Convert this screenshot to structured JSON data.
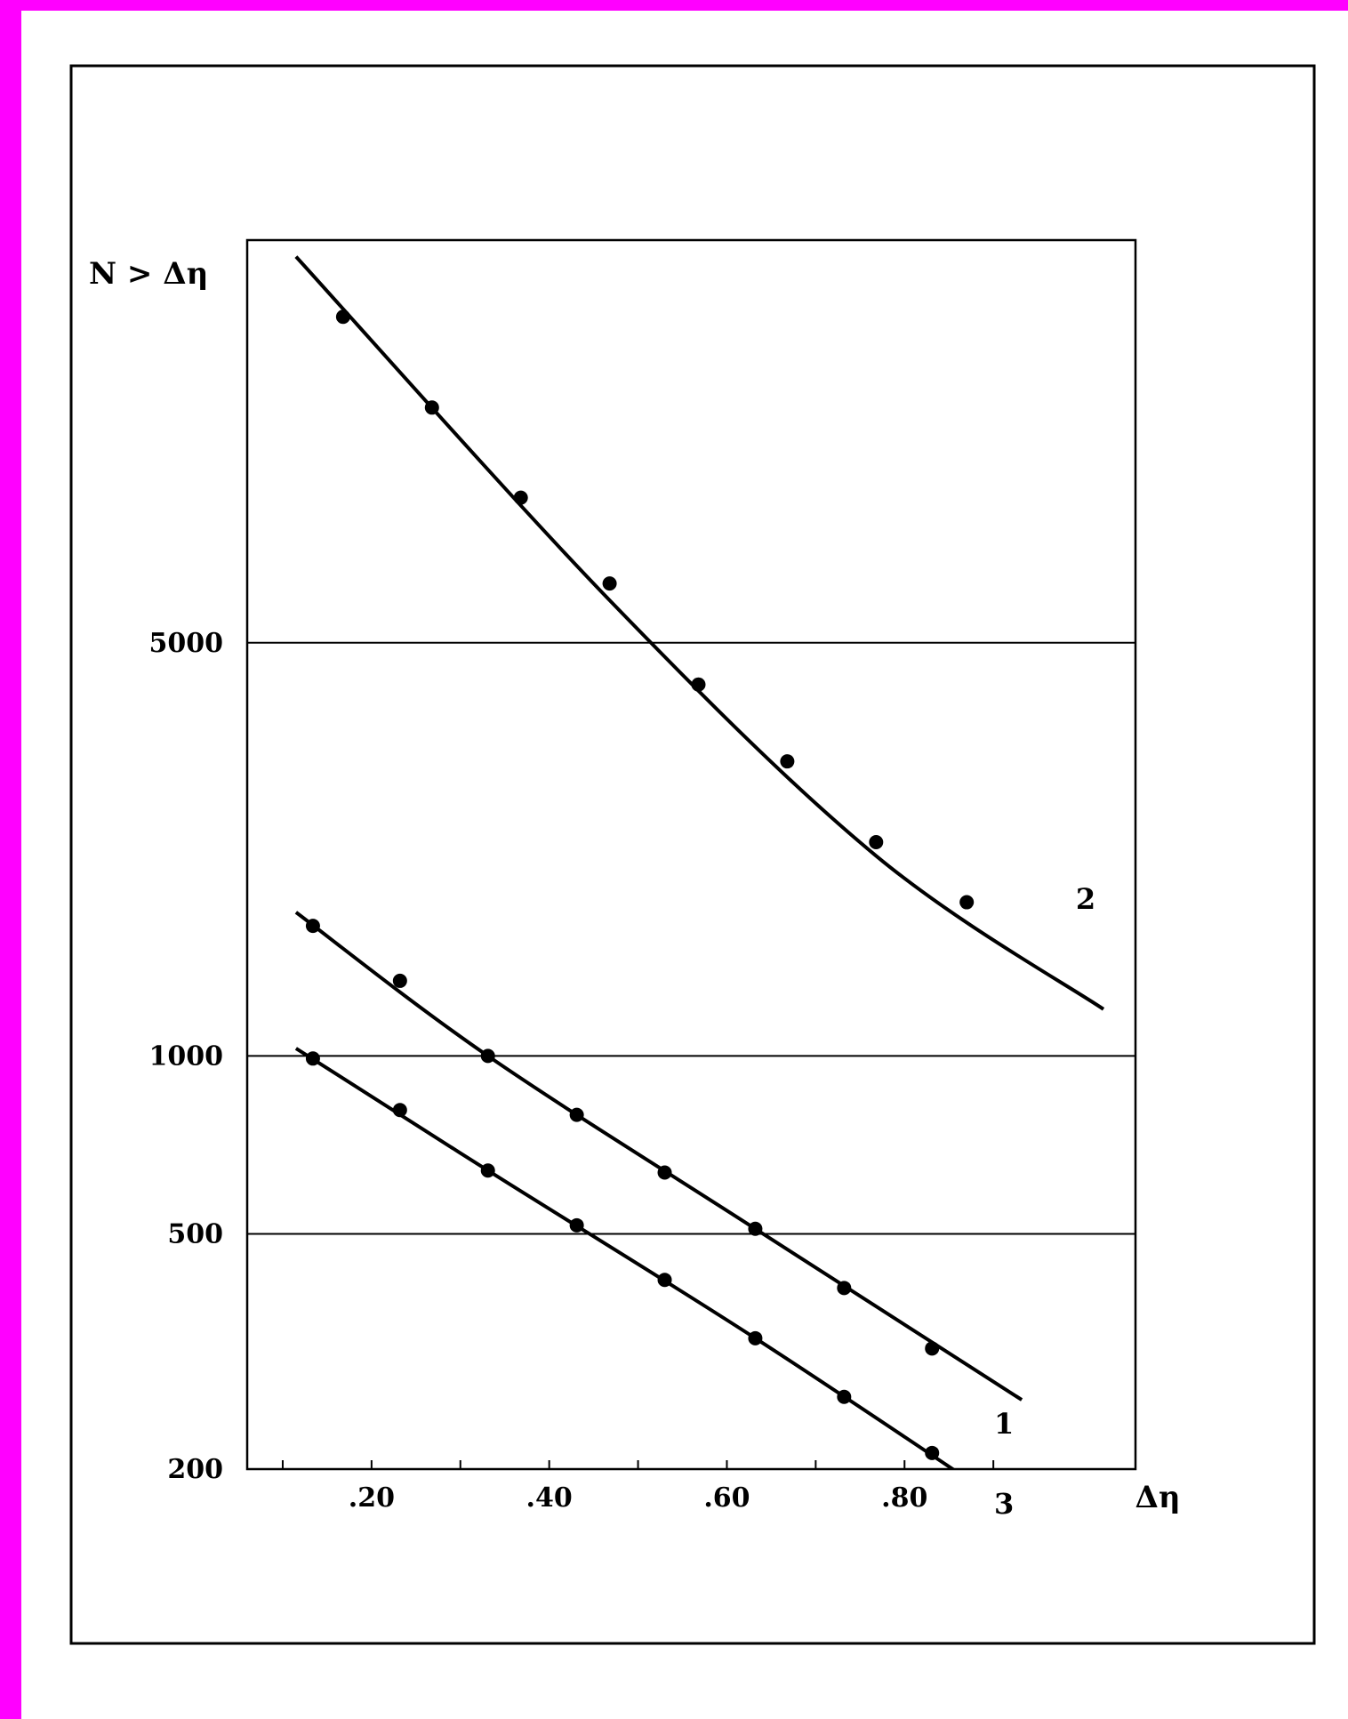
{
  "chart_data": {
    "type": "line",
    "ylabel": "N > Δη",
    "xlabel": "Δη",
    "y_scale": "log",
    "ylim": [
      200,
      24000
    ],
    "xlim": [
      0.06,
      1.06
    ],
    "x_ticks": [
      0.1,
      0.2,
      0.3,
      0.4,
      0.5,
      0.6,
      0.7,
      0.8,
      0.9
    ],
    "x_tick_labels": [
      {
        "value": 0.2,
        "label": ".20"
      },
      {
        "value": 0.4,
        "label": ".40"
      },
      {
        "value": 0.6,
        "label": ".60"
      },
      {
        "value": 0.8,
        "label": ".80"
      }
    ],
    "y_tick_labels": [
      {
        "value": 200,
        "label": "200"
      },
      {
        "value": 500,
        "label": "500"
      },
      {
        "value": 1000,
        "label": "1000"
      },
      {
        "value": 5000,
        "label": "5000"
      }
    ],
    "gridlines_y": [
      500,
      1000,
      5000
    ],
    "grid": "horizontal at 500, 1000, 5000",
    "series": [
      {
        "name": "1",
        "points": [
          {
            "x": 0.134,
            "y": 1660
          },
          {
            "x": 0.232,
            "y": 1340
          },
          {
            "x": 0.331,
            "y": 1000
          },
          {
            "x": 0.431,
            "y": 795
          },
          {
            "x": 0.53,
            "y": 635
          },
          {
            "x": 0.632,
            "y": 510
          },
          {
            "x": 0.732,
            "y": 405
          },
          {
            "x": 0.831,
            "y": 320
          }
        ],
        "curve": [
          {
            "x": 0.115,
            "y": 1750
          },
          {
            "x": 0.331,
            "y": 1000
          },
          {
            "x": 0.632,
            "y": 510
          },
          {
            "x": 0.932,
            "y": 262
          }
        ]
      },
      {
        "name": "2",
        "points": [
          {
            "x": 0.168,
            "y": 17800
          },
          {
            "x": 0.268,
            "y": 12500
          },
          {
            "x": 0.368,
            "y": 8800
          },
          {
            "x": 0.468,
            "y": 6300
          },
          {
            "x": 0.568,
            "y": 4250
          },
          {
            "x": 0.668,
            "y": 3150
          },
          {
            "x": 0.768,
            "y": 2300
          },
          {
            "x": 0.87,
            "y": 1820
          }
        ],
        "curve": [
          {
            "x": 0.115,
            "y": 22500
          },
          {
            "x": 0.468,
            "y": 5900
          },
          {
            "x": 0.768,
            "y": 2180
          },
          {
            "x": 1.024,
            "y": 1200
          }
        ]
      },
      {
        "name": "3",
        "points": [
          {
            "x": 0.134,
            "y": 990
          },
          {
            "x": 0.232,
            "y": 810
          },
          {
            "x": 0.331,
            "y": 640
          },
          {
            "x": 0.431,
            "y": 517
          },
          {
            "x": 0.53,
            "y": 418
          },
          {
            "x": 0.632,
            "y": 333
          },
          {
            "x": 0.732,
            "y": 265
          },
          {
            "x": 0.831,
            "y": 213
          }
        ],
        "curve": [
          {
            "x": 0.115,
            "y": 1030
          },
          {
            "x": 0.331,
            "y": 640
          },
          {
            "x": 0.632,
            "y": 333
          },
          {
            "x": 0.932,
            "y": 167
          }
        ]
      }
    ]
  }
}
